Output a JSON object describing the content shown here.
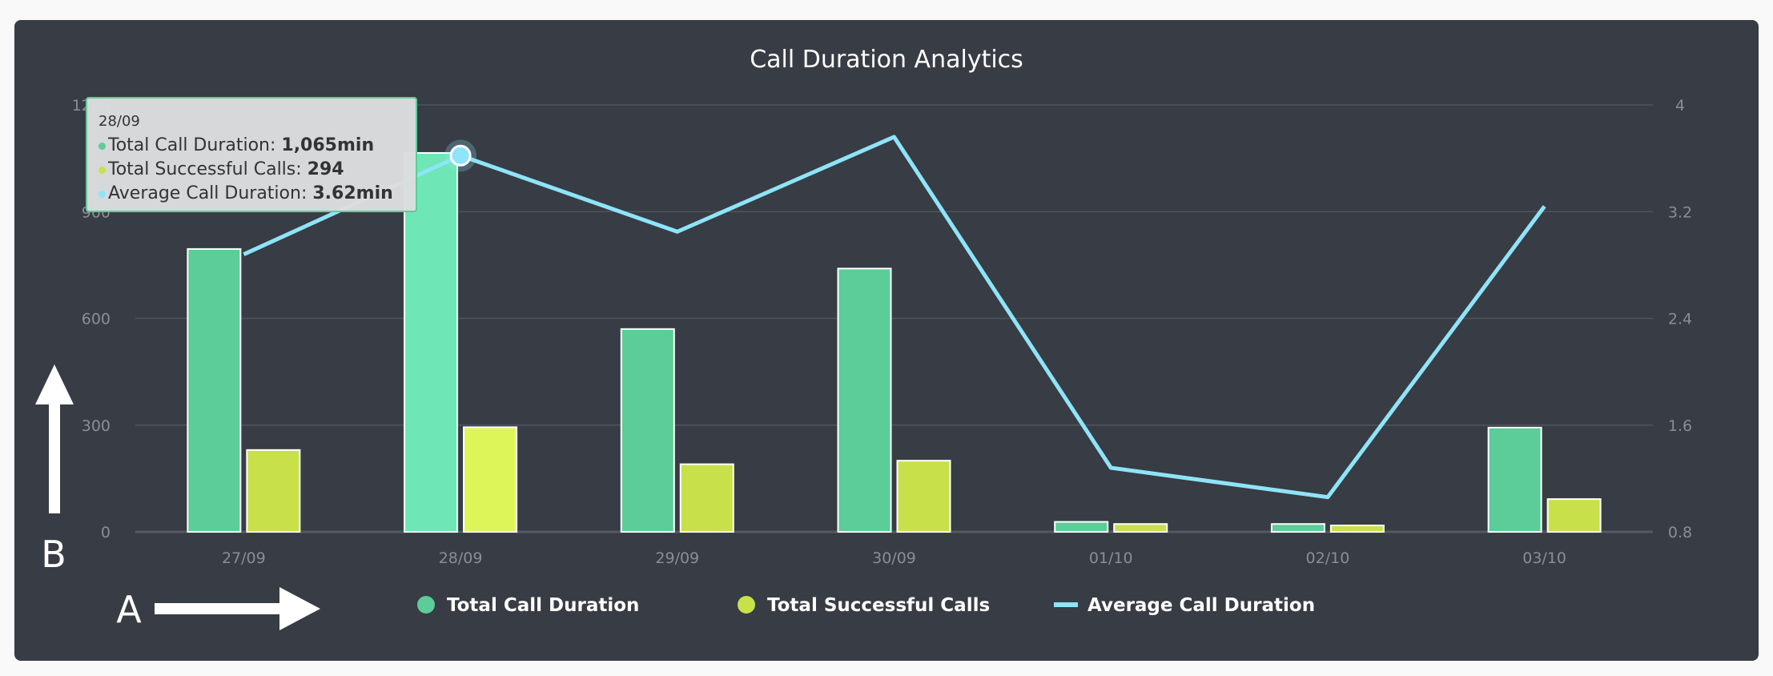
{
  "chart_data": {
    "type": "bar",
    "title": "Call Duration Analytics",
    "categories": [
      "27/09",
      "28/09",
      "29/09",
      "30/09",
      "01/10",
      "02/10",
      "03/10"
    ],
    "series": [
      {
        "name": "Total Call Duration",
        "type": "bar",
        "axis": "left",
        "color": "#5ccc98",
        "values": [
          795,
          1065,
          570,
          740,
          28,
          22,
          293
        ]
      },
      {
        "name": "Total Successful Calls",
        "type": "bar",
        "axis": "left",
        "color": "#c8e04a",
        "values": [
          230,
          294,
          190,
          200,
          22,
          18,
          92
        ]
      },
      {
        "name": "Average Call Duration",
        "type": "line",
        "axis": "right",
        "color": "#8ee4f8",
        "values": [
          2.88,
          3.62,
          3.05,
          3.76,
          1.28,
          1.06,
          3.24
        ]
      }
    ],
    "yleft": {
      "ylim": [
        0,
        1200
      ],
      "ticks": [
        "0",
        "300",
        "600",
        "900",
        "1200"
      ]
    },
    "yright": {
      "ylim": [
        0.8,
        4
      ],
      "ticks": [
        "0.8",
        "1.6",
        "2.4",
        "3.2",
        "4"
      ]
    },
    "grid": true,
    "legend_position": "bottom",
    "highlighted_index": 1
  },
  "tooltip": {
    "date": "28/09",
    "rows": [
      {
        "label": "Total Call Duration: ",
        "value": "1,065min",
        "color": "#5ccc98"
      },
      {
        "label": "Total Successful Calls: ",
        "value": "294",
        "color": "#c8e04a"
      },
      {
        "label": "Average Call Duration: ",
        "value": "3.62min",
        "color": "#8ee4f8"
      }
    ]
  },
  "annotations": {
    "a": "A",
    "b": "B"
  }
}
